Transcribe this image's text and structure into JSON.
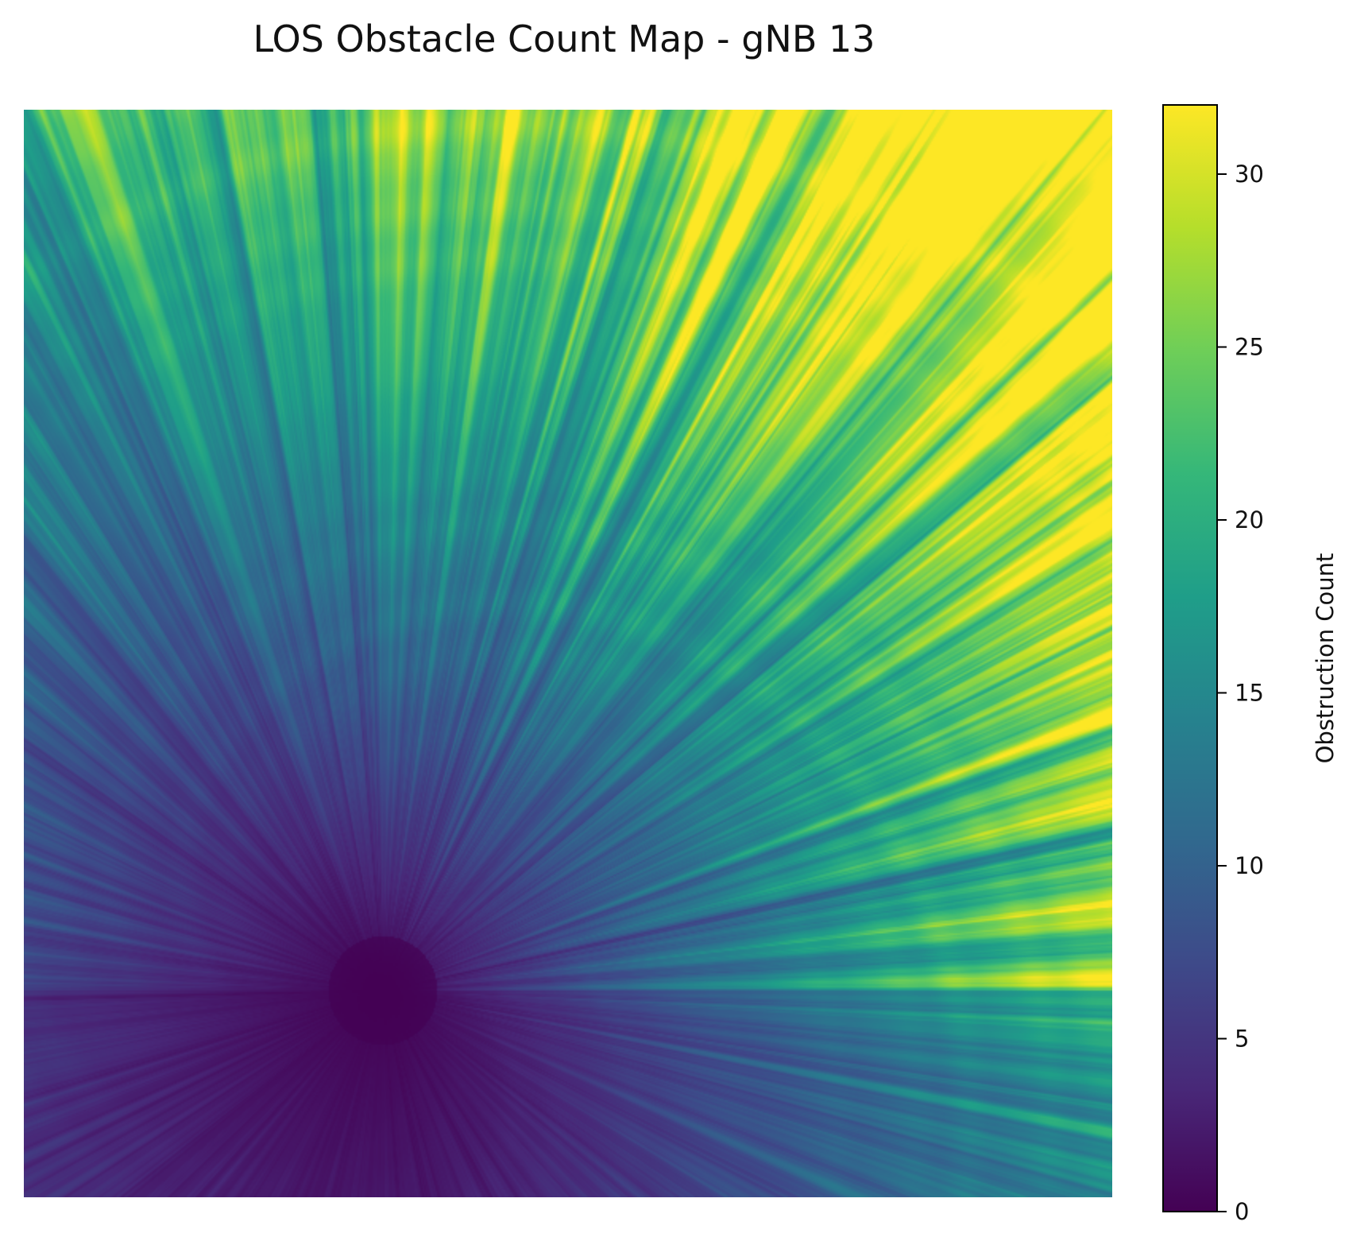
{
  "chart_data": {
    "type": "heatmap",
    "title": "LOS Obstacle Count Map - gNB 13",
    "xlabel": "",
    "ylabel": "",
    "axes_visible": false,
    "colormap": "viridis",
    "colorbar": {
      "label": "Obstruction Count",
      "range": [
        0,
        32
      ],
      "ticks": [
        0,
        5,
        10,
        15,
        20,
        25,
        30
      ],
      "tick_labels": [
        "0",
        "5",
        "10",
        "15",
        "20",
        "25",
        "30"
      ]
    },
    "grid_extent": {
      "x": [
        0,
        1
      ],
      "y": [
        0,
        1
      ]
    },
    "source_location": [
      0.33,
      0.19
    ],
    "value_range": [
      0,
      32
    ],
    "description_regions": [
      {
        "region": "around source",
        "value": 0
      },
      {
        "region": "lower-left",
        "value": 3
      },
      {
        "region": "lower-right",
        "value": 8
      },
      {
        "region": "left-center",
        "value": 10
      },
      {
        "region": "top-left",
        "value": 22
      },
      {
        "region": "top-center",
        "value": 18
      },
      {
        "region": "top-right",
        "value": 29
      }
    ],
    "colors": {
      "viridis_stops": [
        "#440154",
        "#482878",
        "#3e4989",
        "#31688e",
        "#26828e",
        "#1f9e89",
        "#35b779",
        "#6ece58",
        "#b5de2b",
        "#fde725"
      ]
    }
  }
}
